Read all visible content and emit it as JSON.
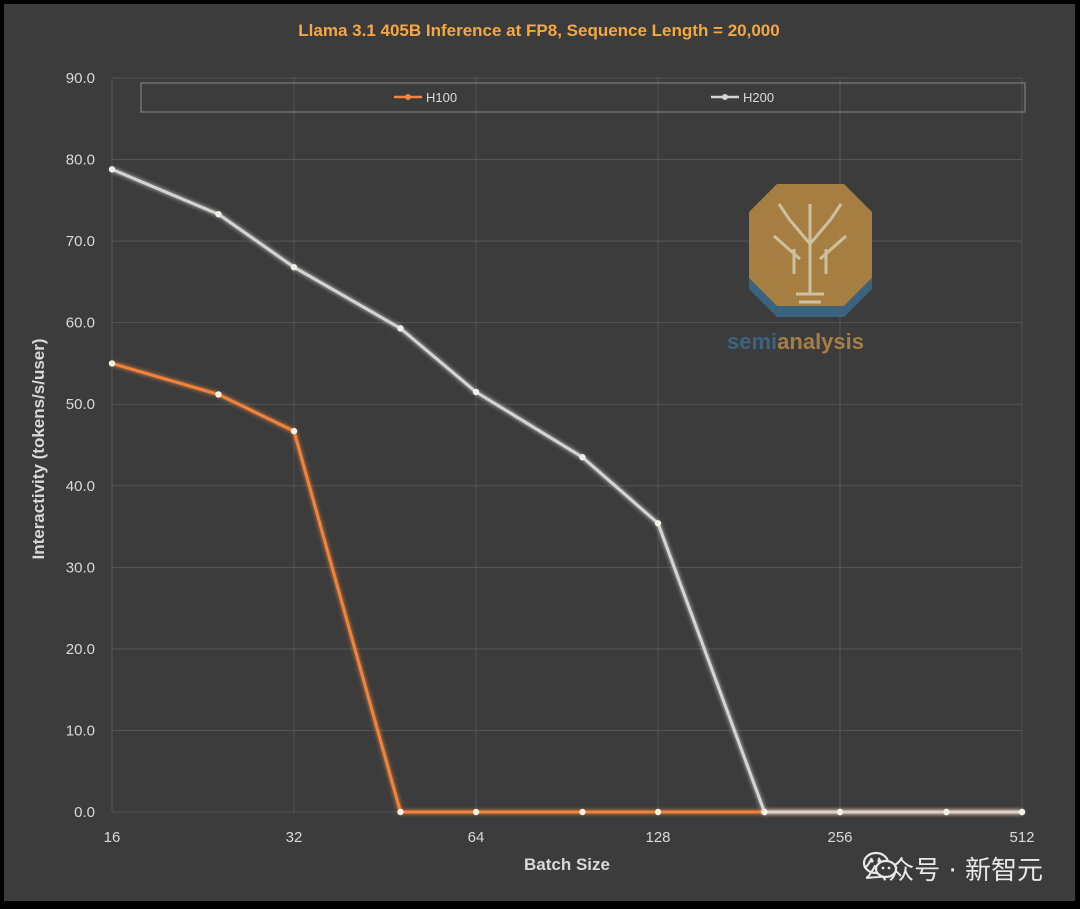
{
  "chart_data": {
    "type": "line",
    "title": "Llama 3.1 405B Inference at FP8, Sequence Length = 20,000",
    "xlabel": "Batch Size",
    "ylabel": "Interactivity (tokens/s/user)",
    "x_scale": "log2",
    "x": [
      16,
      24,
      32,
      48,
      64,
      96,
      128,
      192,
      256,
      384,
      512
    ],
    "x_tick_labels": [
      "16",
      "32",
      "64",
      "128",
      "256",
      "512"
    ],
    "x_tick_values": [
      16,
      32,
      64,
      128,
      256,
      512
    ],
    "ylim": [
      0,
      90
    ],
    "y_tick_values": [
      0,
      10,
      20,
      30,
      40,
      50,
      60,
      70,
      80,
      90
    ],
    "y_tick_labels": [
      "0.0",
      "10.0",
      "20.0",
      "30.0",
      "40.0",
      "50.0",
      "60.0",
      "70.0",
      "80.0",
      "90.0"
    ],
    "grid": true,
    "legend_position": "top",
    "series": [
      {
        "name": "H100",
        "color": "#f0843c",
        "values": [
          55.0,
          51.2,
          46.7,
          0.0,
          0.0,
          0.0,
          0.0,
          0.0,
          0.0,
          0.0,
          0.0
        ]
      },
      {
        "name": "H200",
        "color": "#d4d4d4",
        "values": [
          78.8,
          73.3,
          66.8,
          59.3,
          51.5,
          43.5,
          35.4,
          0.0,
          0.0,
          0.0,
          0.0
        ]
      }
    ]
  },
  "watermark": {
    "text_part1": "semi",
    "text_part2": "analysis",
    "icon": "tree-octagon-logo"
  },
  "footer": {
    "wechat_label": "公众号 · 新智元",
    "icon": "wechat-icon"
  }
}
